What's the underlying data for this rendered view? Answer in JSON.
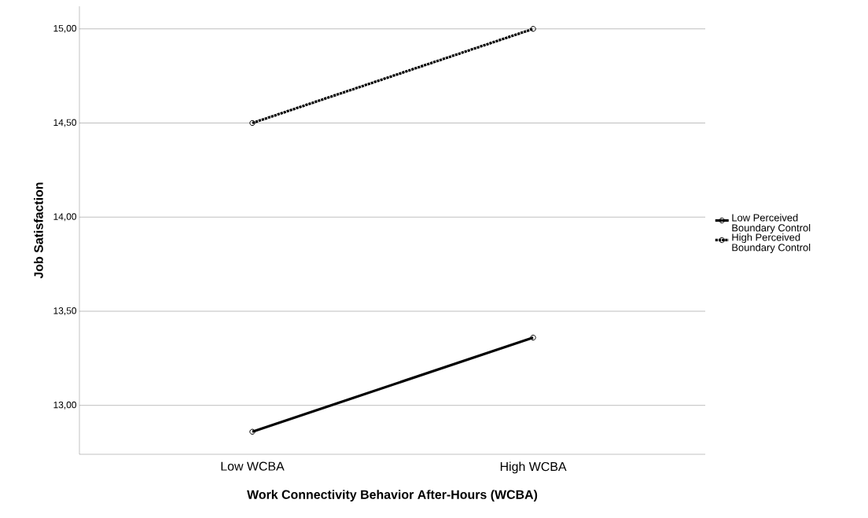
{
  "chart_data": {
    "type": "line",
    "xlabel": "Work Connectivity Behavior After-Hours (WCBA)",
    "ylabel": "Job Satisfaction",
    "categories": [
      "Low WCBA",
      "High WCBA"
    ],
    "series": [
      {
        "name": "Low Perceived Boundary Control",
        "color": "#000000",
        "values": [
          12.86,
          13.36
        ],
        "line_style": "solid"
      },
      {
        "name": "High Perceived Boundary Control",
        "color": "#000000",
        "values": [
          14.5,
          15.0
        ],
        "line_style": "dotted"
      }
    ],
    "ylim": [
      12.74,
      15.12
    ],
    "yticks": [
      {
        "value": 13,
        "label": "13,00"
      },
      {
        "value": 13.5,
        "label": "13,50"
      },
      {
        "value": 14,
        "label": "14,00"
      },
      {
        "value": 14.5,
        "label": "14,50"
      },
      {
        "value": 15,
        "label": "15,00"
      }
    ],
    "grid": "y",
    "legend": "right",
    "marker": "circle"
  }
}
